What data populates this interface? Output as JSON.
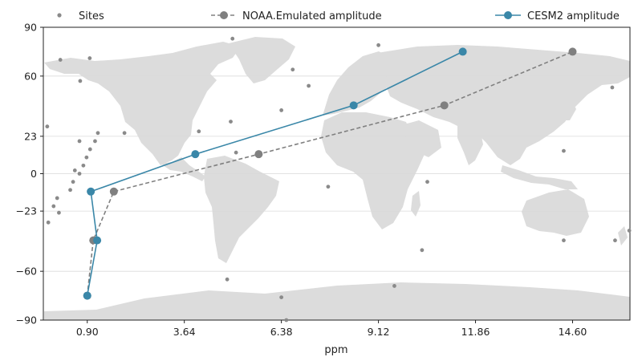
{
  "chart_data": {
    "type": "line",
    "title": "",
    "xlabel": "ppm",
    "ylabel": "",
    "xlim": [
      -0.34,
      16.22
    ],
    "ylim": [
      -90,
      90
    ],
    "x_ticks": [
      0.9,
      3.64,
      6.38,
      9.12,
      11.86,
      14.6
    ],
    "x_tick_labels": [
      "0.90",
      "3.64",
      "6.38",
      "9.12",
      "11.86",
      "14.60"
    ],
    "y_ticks": [
      90,
      60,
      23,
      0,
      -23,
      -60,
      -90
    ],
    "y_tick_labels": [
      "90",
      "60",
      "23",
      "0",
      "−23",
      "−60",
      "−90"
    ],
    "grid": "horizontal",
    "background": "world map",
    "legend": [
      {
        "label": "Sites",
        "style": "dots"
      },
      {
        "label": "NOAA.Emulated amplitude",
        "style": "dashed-line-marker"
      },
      {
        "label": "CESM2 amplitude",
        "style": "solid-line-marker"
      }
    ],
    "legend_placement": "top",
    "series": [
      {
        "name": "NOAA.Emulated amplitude",
        "color": "#808080",
        "linestyle": "dashed",
        "points": [
          {
            "x": 0.9,
            "y": -75
          },
          {
            "x": 1.07,
            "y": -41
          },
          {
            "x": 1.65,
            "y": -11
          },
          {
            "x": 5.74,
            "y": 12
          },
          {
            "x": 10.98,
            "y": 42
          },
          {
            "x": 14.6,
            "y": 75
          }
        ]
      },
      {
        "name": "CESM2 amplitude",
        "color": "#3a87a8",
        "linestyle": "solid",
        "points": [
          {
            "x": 0.9,
            "y": -75
          },
          {
            "x": 1.18,
            "y": -41
          },
          {
            "x": 1.0,
            "y": -11
          },
          {
            "x": 3.95,
            "y": 12
          },
          {
            "x": 8.42,
            "y": 42
          },
          {
            "x": 11.5,
            "y": 75
          }
        ]
      }
    ],
    "sites": [
      {
        "x": -0.23,
        "y": 29
      },
      {
        "x": 0.14,
        "y": 70
      },
      {
        "x": 0.7,
        "y": 57
      },
      {
        "x": 0.97,
        "y": 71
      },
      {
        "x": 1.95,
        "y": 25
      },
      {
        "x": 4.05,
        "y": 26
      },
      {
        "x": 4.95,
        "y": 32
      },
      {
        "x": 5.0,
        "y": 83
      },
      {
        "x": 5.1,
        "y": 13
      },
      {
        "x": 6.38,
        "y": 39
      },
      {
        "x": 6.7,
        "y": 64
      },
      {
        "x": 7.15,
        "y": 54
      },
      {
        "x": 9.12,
        "y": 79
      },
      {
        "x": 7.7,
        "y": -8
      },
      {
        "x": 10.5,
        "y": -5
      },
      {
        "x": 10.35,
        "y": -47
      },
      {
        "x": 9.57,
        "y": -69
      },
      {
        "x": 4.85,
        "y": -65
      },
      {
        "x": 6.38,
        "y": -76
      },
      {
        "x": 6.52,
        "y": -90
      },
      {
        "x": 14.35,
        "y": 14
      },
      {
        "x": 14.35,
        "y": -41
      },
      {
        "x": 15.72,
        "y": 53
      },
      {
        "x": 15.8,
        "y": -41
      },
      {
        "x": 16.2,
        "y": -35
      },
      {
        "x": -0.2,
        "y": -30
      },
      {
        "x": -0.05,
        "y": -20
      },
      {
        "x": 0.05,
        "y": -15
      },
      {
        "x": 0.1,
        "y": -24
      },
      {
        "x": 0.42,
        "y": -10
      },
      {
        "x": 0.5,
        "y": -5
      },
      {
        "x": 0.55,
        "y": 2
      },
      {
        "x": 0.68,
        "y": 0
      },
      {
        "x": 0.79,
        "y": 5
      },
      {
        "x": 0.88,
        "y": 10
      },
      {
        "x": 0.98,
        "y": 15
      },
      {
        "x": 1.12,
        "y": 20
      },
      {
        "x": 1.2,
        "y": 25
      },
      {
        "x": 0.68,
        "y": 20
      }
    ],
    "colors": {
      "land": "#dcdcdc",
      "grid": "#d9d9d9",
      "sites": "#8a8a8a",
      "noaa": "#808080",
      "cesm2": "#3a87a8"
    }
  }
}
